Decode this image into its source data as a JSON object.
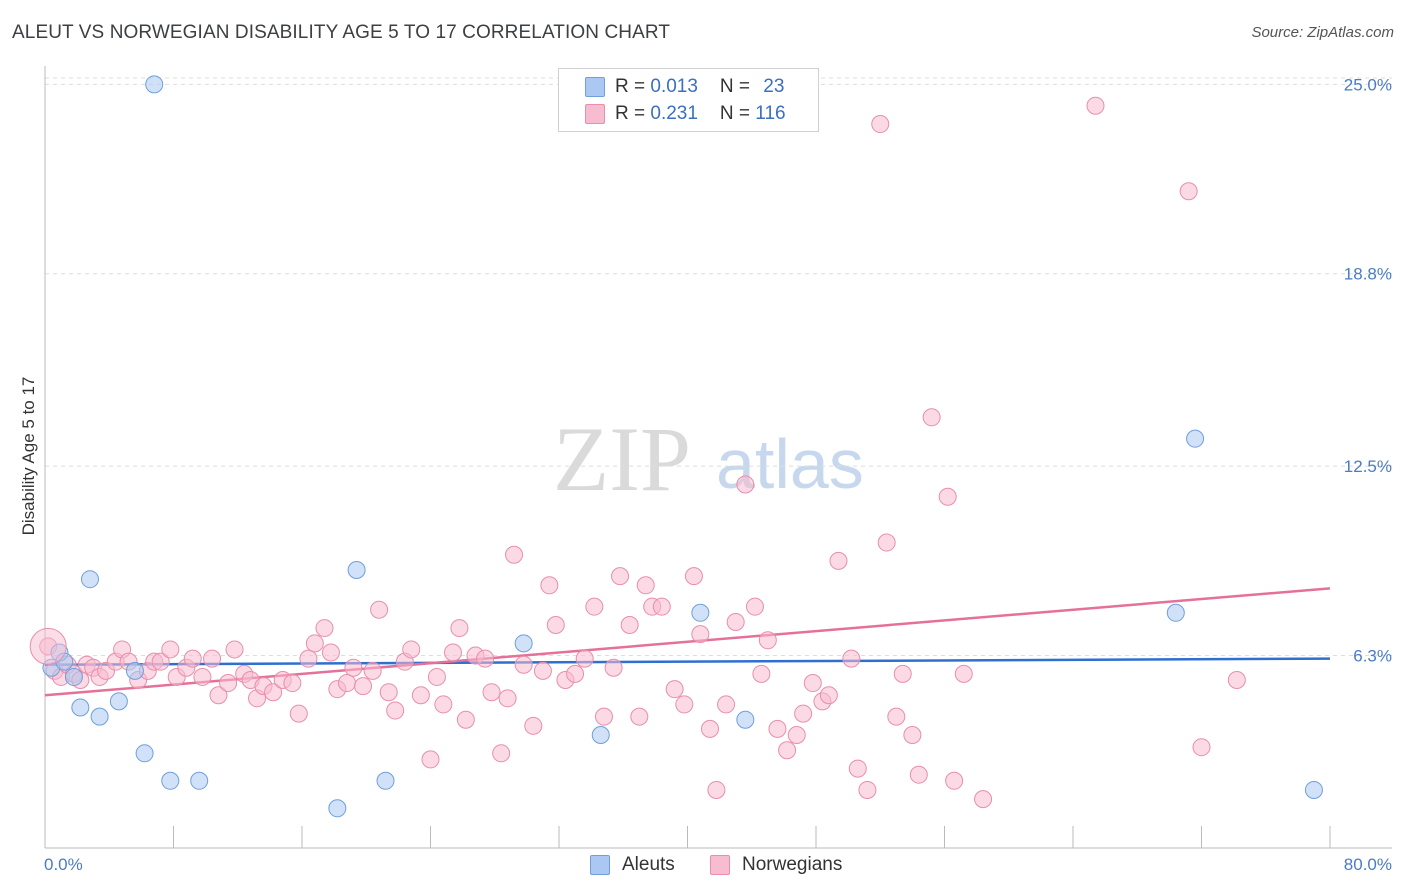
{
  "title": "ALEUT VS NORWEGIAN DISABILITY AGE 5 TO 17 CORRELATION CHART",
  "source": "Source: ZipAtlas.com",
  "watermark": {
    "zip": "ZIP",
    "atlas": "atlas"
  },
  "legend_top": {
    "aleut": {
      "r_label": "R = ",
      "r_value": "0.013",
      "n_label": "N = ",
      "n_value": "23"
    },
    "norwegian": {
      "r_label": "R = ",
      "r_value": "0.231",
      "n_label": "N = ",
      "n_value": "116"
    }
  },
  "legend_bottom": {
    "aleut": "Aleuts",
    "norwegian": "Norwegians"
  },
  "colors": {
    "aleut_fill": "#aac8f2",
    "aleut_stroke": "#6f9fdc",
    "aleut_line": "#2f6fd0",
    "norwegian_fill": "#f7bcd0",
    "norwegian_stroke": "#e98eab",
    "norwegian_line": "#e5709a",
    "tick_text": "#4a7cc7",
    "grid": "#dddddd"
  },
  "chart_data": {
    "type": "scatter",
    "title": "ALEUT VS NORWEGIAN DISABILITY AGE 5 TO 17 CORRELATION CHART",
    "xlabel": "",
    "ylabel": "Disability Age 5 to 17",
    "xlim": [
      0,
      80
    ],
    "ylim": [
      0,
      25.6
    ],
    "x_tick_labels": [
      "0.0%",
      "80.0%"
    ],
    "y_ticks": [
      6.3,
      12.5,
      18.8,
      25.0
    ],
    "y_tick_labels": [
      "6.3%",
      "12.5%",
      "18.8%",
      "25.0%"
    ],
    "grid": "horizontal dashed",
    "legend_position": "top-center",
    "series": [
      {
        "name": "Aleuts",
        "r": 0.013,
        "n": 23,
        "trend": [
          [
            0,
            6.0
          ],
          [
            80,
            6.2
          ]
        ],
        "points": [
          [
            0.4,
            5.9
          ],
          [
            0.9,
            6.4
          ],
          [
            1.2,
            6.1
          ],
          [
            1.8,
            5.6
          ],
          [
            2.2,
            4.6
          ],
          [
            2.8,
            8.8
          ],
          [
            3.4,
            4.3
          ],
          [
            4.6,
            4.8
          ],
          [
            5.6,
            5.8
          ],
          [
            6.2,
            3.1
          ],
          [
            6.8,
            25.0
          ],
          [
            7.8,
            2.2
          ],
          [
            9.6,
            2.2
          ],
          [
            18.2,
            1.3
          ],
          [
            19.4,
            9.1
          ],
          [
            21.2,
            2.2
          ],
          [
            29.8,
            6.7
          ],
          [
            34.6,
            3.7
          ],
          [
            40.8,
            7.7
          ],
          [
            43.6,
            4.2
          ],
          [
            70.4,
            7.7
          ],
          [
            71.6,
            13.4
          ],
          [
            79.0,
            1.9
          ]
        ]
      },
      {
        "name": "Norwegians",
        "r": 0.231,
        "n": 116,
        "trend": [
          [
            0,
            5.0
          ],
          [
            80,
            8.5
          ]
        ],
        "points": [
          [
            0.2,
            6.6
          ],
          [
            0.6,
            5.8
          ],
          [
            1.0,
            5.6
          ],
          [
            1.4,
            6.0
          ],
          [
            1.8,
            5.7
          ],
          [
            2.2,
            5.5
          ],
          [
            2.6,
            6.0
          ],
          [
            3.0,
            5.9
          ],
          [
            3.4,
            5.6
          ],
          [
            3.8,
            5.8
          ],
          [
            4.4,
            6.1
          ],
          [
            4.8,
            6.5
          ],
          [
            5.2,
            6.1
          ],
          [
            5.8,
            5.5
          ],
          [
            6.4,
            5.8
          ],
          [
            6.8,
            6.1
          ],
          [
            7.2,
            6.1
          ],
          [
            7.8,
            6.5
          ],
          [
            8.2,
            5.6
          ],
          [
            8.8,
            5.9
          ],
          [
            9.2,
            6.2
          ],
          [
            9.8,
            5.6
          ],
          [
            10.4,
            6.2
          ],
          [
            10.8,
            5.0
          ],
          [
            11.4,
            5.4
          ],
          [
            11.8,
            6.5
          ],
          [
            12.4,
            5.7
          ],
          [
            12.8,
            5.5
          ],
          [
            13.2,
            4.9
          ],
          [
            13.6,
            5.3
          ],
          [
            14.2,
            5.1
          ],
          [
            14.8,
            5.5
          ],
          [
            15.4,
            5.4
          ],
          [
            15.8,
            4.4
          ],
          [
            16.4,
            6.2
          ],
          [
            16.8,
            6.7
          ],
          [
            17.4,
            7.2
          ],
          [
            17.8,
            6.4
          ],
          [
            18.2,
            5.2
          ],
          [
            18.8,
            5.4
          ],
          [
            19.2,
            5.9
          ],
          [
            19.8,
            5.3
          ],
          [
            20.4,
            5.8
          ],
          [
            20.8,
            7.8
          ],
          [
            21.4,
            5.1
          ],
          [
            21.8,
            4.5
          ],
          [
            22.4,
            6.1
          ],
          [
            22.8,
            6.5
          ],
          [
            23.4,
            5.0
          ],
          [
            24.0,
            2.9
          ],
          [
            24.4,
            5.6
          ],
          [
            24.8,
            4.7
          ],
          [
            25.4,
            6.4
          ],
          [
            25.8,
            7.2
          ],
          [
            26.2,
            4.2
          ],
          [
            26.8,
            6.3
          ],
          [
            27.4,
            6.2
          ],
          [
            27.8,
            5.1
          ],
          [
            28.4,
            3.1
          ],
          [
            28.8,
            4.9
          ],
          [
            29.2,
            9.6
          ],
          [
            29.8,
            6.0
          ],
          [
            30.4,
            4.0
          ],
          [
            31.0,
            5.8
          ],
          [
            31.4,
            8.6
          ],
          [
            31.8,
            7.3
          ],
          [
            32.4,
            5.5
          ],
          [
            33.0,
            5.7
          ],
          [
            33.6,
            6.2
          ],
          [
            34.2,
            7.9
          ],
          [
            34.8,
            4.3
          ],
          [
            35.4,
            5.9
          ],
          [
            35.8,
            8.9
          ],
          [
            36.4,
            7.3
          ],
          [
            37.0,
            4.3
          ],
          [
            37.4,
            8.6
          ],
          [
            37.8,
            7.9
          ],
          [
            38.4,
            7.9
          ],
          [
            39.2,
            5.2
          ],
          [
            39.8,
            4.7
          ],
          [
            40.4,
            8.9
          ],
          [
            40.8,
            7.0
          ],
          [
            41.4,
            3.9
          ],
          [
            41.8,
            1.9
          ],
          [
            42.4,
            4.7
          ],
          [
            43.0,
            7.4
          ],
          [
            43.6,
            11.9
          ],
          [
            44.2,
            7.9
          ],
          [
            44.6,
            5.7
          ],
          [
            45.0,
            6.8
          ],
          [
            45.6,
            3.9
          ],
          [
            46.2,
            3.2
          ],
          [
            46.8,
            3.7
          ],
          [
            47.2,
            4.4
          ],
          [
            47.8,
            5.4
          ],
          [
            48.4,
            4.8
          ],
          [
            48.8,
            5.0
          ],
          [
            49.4,
            9.4
          ],
          [
            50.2,
            6.2
          ],
          [
            50.6,
            2.6
          ],
          [
            51.2,
            1.9
          ],
          [
            52.0,
            23.7
          ],
          [
            52.4,
            10.0
          ],
          [
            53.0,
            4.3
          ],
          [
            53.4,
            5.7
          ],
          [
            54.0,
            3.7
          ],
          [
            54.4,
            2.4
          ],
          [
            55.2,
            14.1
          ],
          [
            56.2,
            11.5
          ],
          [
            56.6,
            2.2
          ],
          [
            57.2,
            5.7
          ],
          [
            58.4,
            1.6
          ],
          [
            65.4,
            24.3
          ],
          [
            71.2,
            21.5
          ],
          [
            72.0,
            3.3
          ],
          [
            74.2,
            5.5
          ]
        ]
      }
    ]
  }
}
